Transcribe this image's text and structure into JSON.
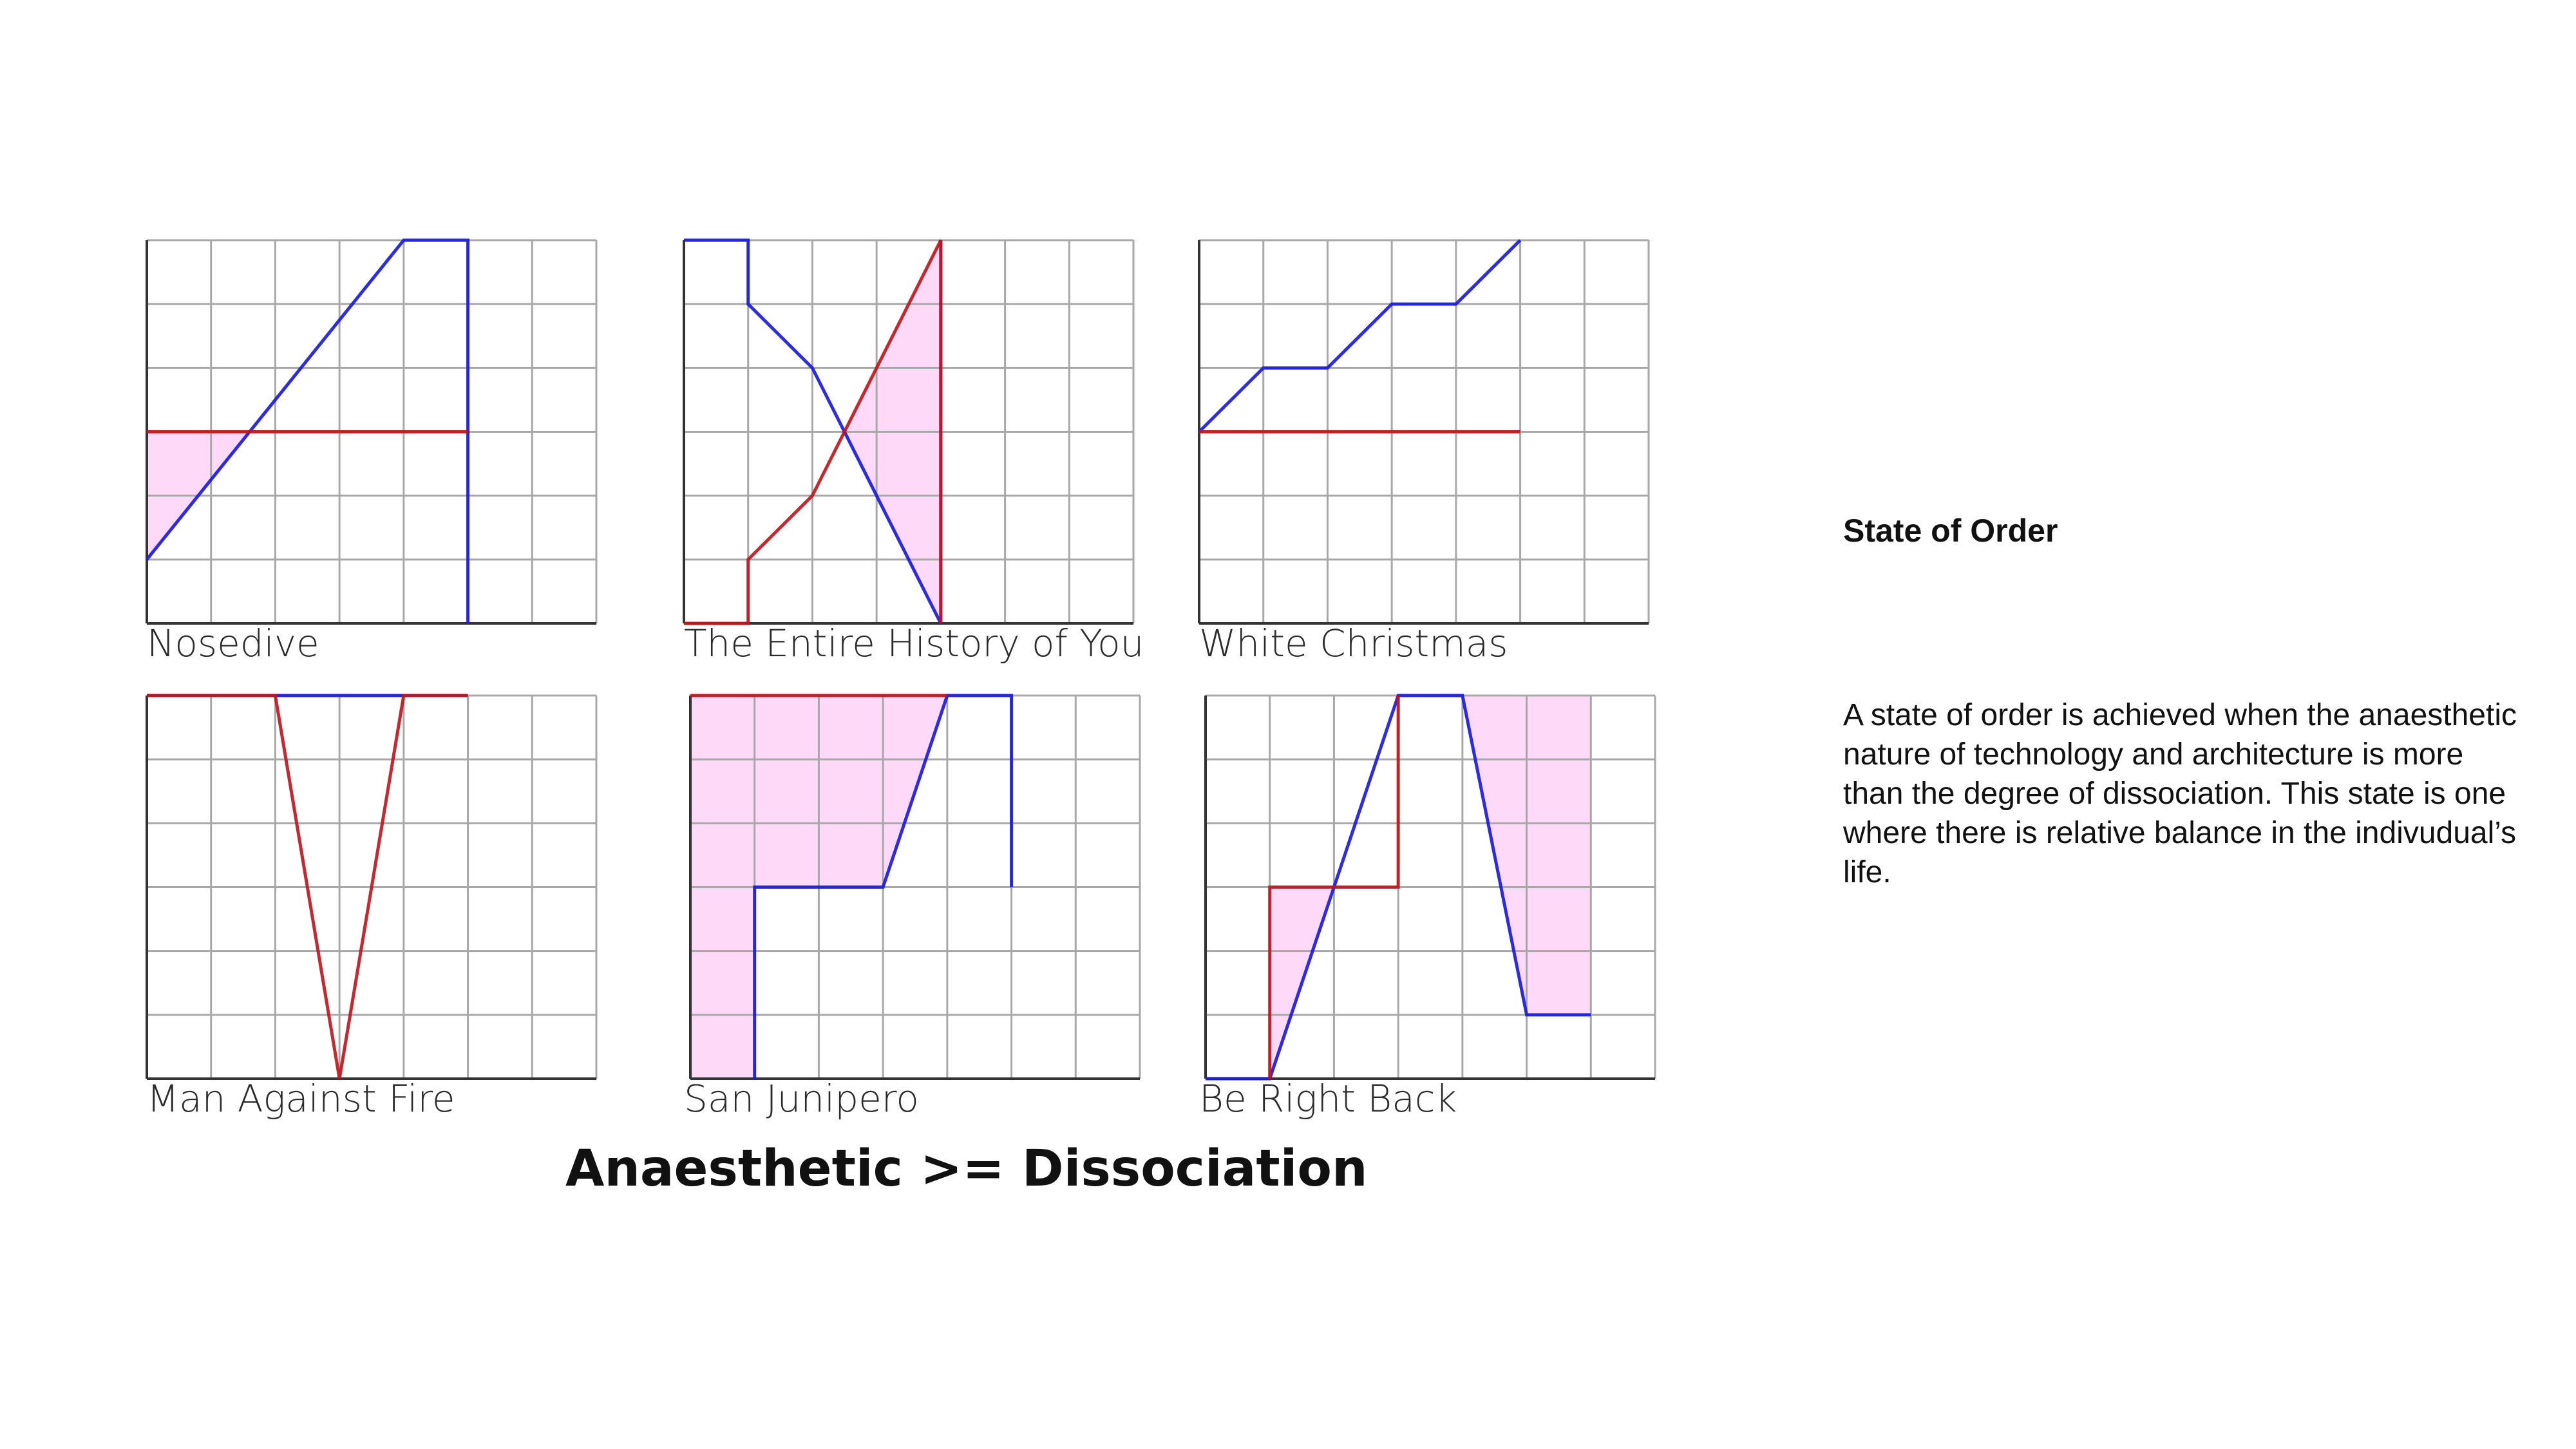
{
  "title": "Anaesthetic >= Dissociation",
  "sidebar": {
    "title": "State of Order",
    "body": "A state of order is achieved when the anaesthetic nature of technology and architecture is more than the degree of dissociation. This state is one where there is relative balance in the indivudual’s life."
  },
  "colors": {
    "blue": "#1a1adf",
    "red": "#c0161c",
    "fill": "#ffdaf8",
    "grid": "#a8a8a8"
  },
  "chart_data": [
    {
      "type": "line",
      "label": "Nosedive",
      "xlim": [
        0,
        7
      ],
      "ylim": [
        0,
        6
      ],
      "series": [
        {
          "color": "#1a1adf",
          "x": [
            0,
            4,
            5,
            5
          ],
          "y": [
            1,
            6,
            6,
            0
          ]
        },
        {
          "color": "#c0161c",
          "x": [
            0,
            5
          ],
          "y": [
            3,
            3
          ]
        }
      ],
      "fills": [
        {
          "points": [
            [
              0,
              1
            ],
            [
              0,
              3
            ],
            [
              1.6,
              3
            ]
          ]
        }
      ]
    },
    {
      "type": "line",
      "label": "The Entire History of You",
      "xlim": [
        0,
        7
      ],
      "ylim": [
        0,
        6
      ],
      "series": [
        {
          "color": "#1a1adf",
          "x": [
            0,
            1,
            1,
            2,
            4,
            4
          ],
          "y": [
            6,
            6,
            5,
            4,
            0,
            6
          ]
        },
        {
          "color": "#c0161c",
          "x": [
            0,
            1,
            1,
            2,
            4,
            4
          ],
          "y": [
            0,
            0,
            1,
            2,
            6,
            0
          ]
        }
      ],
      "fills": [
        {
          "points": [
            [
              2.5,
              3
            ],
            [
              4,
              6
            ],
            [
              4,
              0
            ]
          ]
        }
      ]
    },
    {
      "type": "line",
      "label": "White Christmas",
      "xlim": [
        0,
        7
      ],
      "ylim": [
        0,
        6
      ],
      "series": [
        {
          "color": "#1a1adf",
          "x": [
            0,
            1,
            2,
            3,
            4,
            5
          ],
          "y": [
            3,
            4,
            4,
            5,
            5,
            6
          ]
        },
        {
          "color": "#c0161c",
          "x": [
            0,
            5
          ],
          "y": [
            3,
            3
          ]
        }
      ],
      "fills": []
    },
    {
      "type": "line",
      "label": "Man Against Fire",
      "xlim": [
        0,
        7
      ],
      "ylim": [
        0,
        6
      ],
      "series": [
        {
          "color": "#1a1adf",
          "x": [
            0,
            5
          ],
          "y": [
            6,
            6
          ]
        },
        {
          "color": "#c0161c",
          "x": [
            0,
            2,
            3,
            4,
            5
          ],
          "y": [
            6,
            6,
            0,
            6,
            6
          ]
        }
      ],
      "fills": []
    },
    {
      "type": "line",
      "label": "San Junipero",
      "xlim": [
        0,
        7
      ],
      "ylim": [
        0,
        6
      ],
      "series": [
        {
          "color": "#1a1adf",
          "x": [
            1,
            1,
            2,
            3,
            4,
            5,
            5
          ],
          "y": [
            0,
            3,
            3,
            3,
            6,
            6,
            3
          ]
        },
        {
          "color": "#c0161c",
          "x": [
            0,
            4
          ],
          "y": [
            6,
            6
          ]
        }
      ],
      "fills": [
        {
          "points": [
            [
              0,
              6
            ],
            [
              4,
              6
            ],
            [
              3,
              3
            ],
            [
              1,
              3
            ],
            [
              1,
              0
            ],
            [
              0,
              0
            ]
          ]
        }
      ]
    },
    {
      "type": "line",
      "label": "Be Right Back",
      "xlim": [
        0,
        7
      ],
      "ylim": [
        0,
        6
      ],
      "series": [
        {
          "color": "#1a1adf",
          "x": [
            0,
            1,
            3,
            3,
            4,
            5,
            6
          ],
          "y": [
            0,
            0,
            6,
            6,
            6,
            1,
            1
          ]
        },
        {
          "color": "#c0161c",
          "x": [
            1,
            1,
            3,
            3
          ],
          "y": [
            0,
            3,
            3,
            6
          ]
        }
      ],
      "fills": [
        {
          "points": [
            [
              1,
              0
            ],
            [
              1,
              3
            ],
            [
              2,
              3
            ]
          ]
        },
        {
          "points": [
            [
              4,
              6
            ],
            [
              6,
              6
            ],
            [
              6,
              1
            ],
            [
              5,
              1
            ]
          ]
        }
      ]
    }
  ]
}
